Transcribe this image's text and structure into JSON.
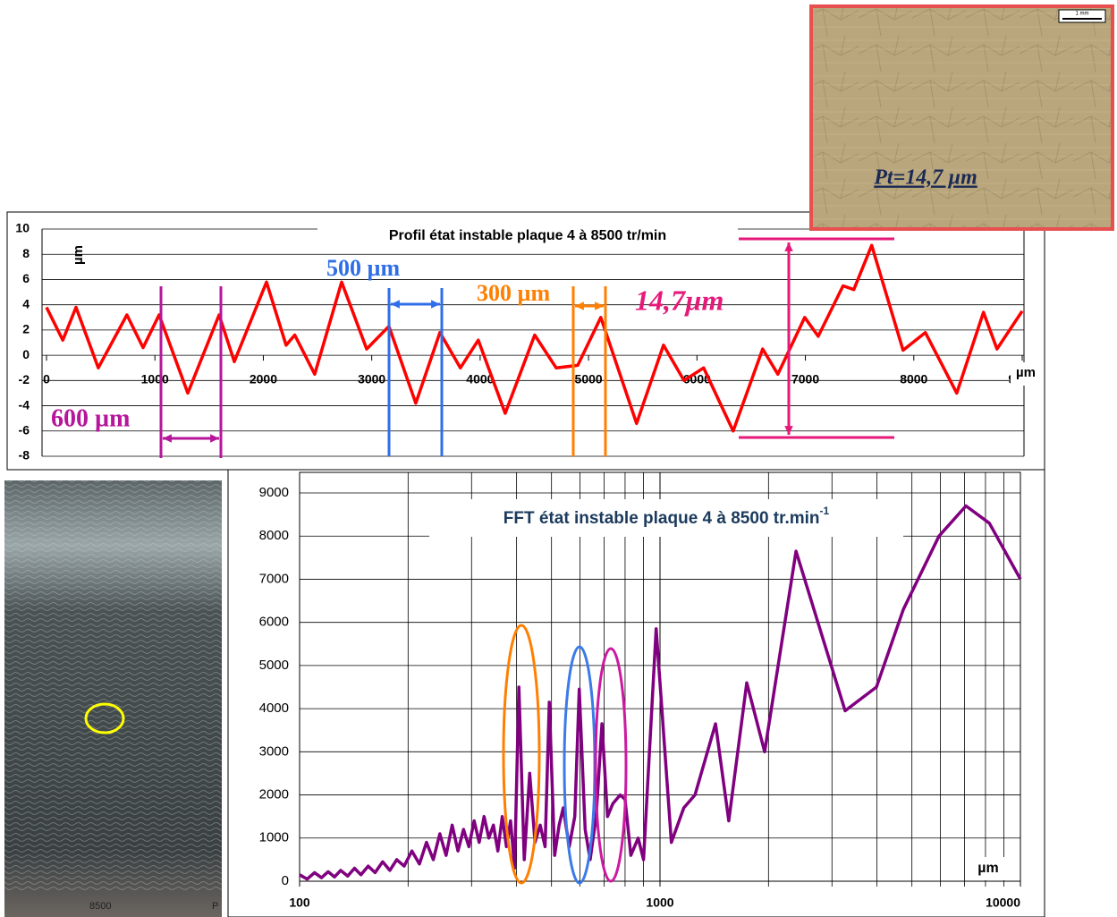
{
  "chart_data": [
    {
      "type": "line",
      "title": "Profil état instable plaque 4 à 8500 tr/min",
      "y_label": "µm",
      "x_label": "µm",
      "color": "#ff0000",
      "x": [
        0,
        150,
        272,
        478,
        742,
        891,
        1039,
        1303,
        1592,
        1732,
        2029,
        2210,
        2290,
        2474,
        2722,
        2953,
        3159,
        3406,
        3629,
        3818,
        3983,
        4231,
        4503,
        4701,
        4900,
        5113,
        5443,
        5691,
        5880,
        6062,
        6334,
        6606,
        6746,
        6994,
        7118,
        7348,
        7447,
        7612,
        7901,
        8107,
        8396,
        8643,
        8767,
        9000
      ],
      "values": [
        3.8,
        1.2,
        3.8,
        -1,
        3.2,
        0.6,
        3.2,
        -3,
        3.2,
        -0.5,
        5.8,
        0.8,
        1.6,
        -1.5,
        5.8,
        0.5,
        2.3,
        -3.8,
        1.8,
        -1,
        1.2,
        -4.6,
        1.6,
        -1,
        -0.8,
        3,
        -5.4,
        0.8,
        -2,
        -1,
        -6,
        0.5,
        -1.5,
        3,
        1.5,
        5.5,
        5.2,
        8.7,
        0.4,
        1.8,
        -3,
        3.4,
        0.5,
        3.5
      ],
      "xlim": [
        0,
        9000
      ],
      "xticks": [
        0,
        1000,
        2000,
        3000,
        4000,
        5000,
        6000,
        7000,
        8000,
        9000
      ],
      "ylim": [
        -8,
        10
      ],
      "yticks": [
        10,
        8,
        6,
        4,
        2,
        0,
        -2,
        -4,
        -6,
        -8
      ],
      "grid": true,
      "annotations": [
        "500 µm",
        "300 µm",
        "14,7µm",
        "600 µm"
      ]
    },
    {
      "type": "line",
      "title": "FFT état instable plaque 4 à 8500 tr.min",
      "title_sup": "-1",
      "x_label": "µm",
      "color": "#800080",
      "log_x": true,
      "x": [
        100,
        105,
        110,
        115,
        120,
        125,
        130,
        136,
        142,
        148,
        155,
        162,
        170,
        178,
        186,
        195,
        205,
        215,
        225,
        235,
        245,
        255,
        265,
        275,
        285,
        295,
        305,
        315,
        325,
        335,
        345,
        355,
        365,
        375,
        385,
        395,
        406,
        420,
        435,
        450,
        465,
        480,
        493,
        510,
        525,
        539,
        560,
        580,
        597,
        620,
        640,
        665,
        690,
        715,
        740,
        775,
        800,
        830,
        870,
        900,
        976,
        1075,
        1164,
        1250,
        1426,
        1552,
        1741,
        1951,
        2384,
        3263,
        3985,
        4733,
        5946,
        7063,
        8200,
        10000
      ],
      "values": [
        150,
        50,
        200,
        80,
        220,
        100,
        250,
        120,
        300,
        150,
        350,
        200,
        450,
        250,
        500,
        350,
        700,
        400,
        900,
        500,
        1100,
        600,
        1300,
        700,
        1200,
        800,
        1400,
        900,
        1500,
        1000,
        1300,
        700,
        1500,
        800,
        1400,
        300,
        4500,
        500,
        2500,
        900,
        1300,
        800,
        4150,
        600,
        1300,
        1700,
        800,
        1500,
        4450,
        1200,
        500,
        1500,
        3650,
        1500,
        1800,
        2000,
        1900,
        600,
        1000,
        500,
        5850,
        900,
        1700,
        2000,
        3650,
        1400,
        4600,
        3000,
        7650,
        3950,
        4500,
        6300,
        8000,
        8700,
        8300,
        7000
      ],
      "xlim": [
        100,
        10000
      ],
      "xticks": [
        100,
        1000,
        10000
      ],
      "xgrid_minor": [
        200,
        300,
        400,
        500,
        600,
        700,
        800,
        900,
        2000,
        3000,
        4000,
        5000,
        6000,
        7000,
        8000,
        9000
      ],
      "ylim": [
        0,
        9000
      ],
      "yticks": [
        9000,
        8000,
        7000,
        6000,
        5000,
        4000,
        3000,
        2000,
        1000,
        0
      ],
      "grid": true
    }
  ],
  "photos": {
    "caption": "Pt=14,7 µm",
    "scale": "1 mm",
    "plate_label": "8500",
    "plate_mark": "P"
  }
}
